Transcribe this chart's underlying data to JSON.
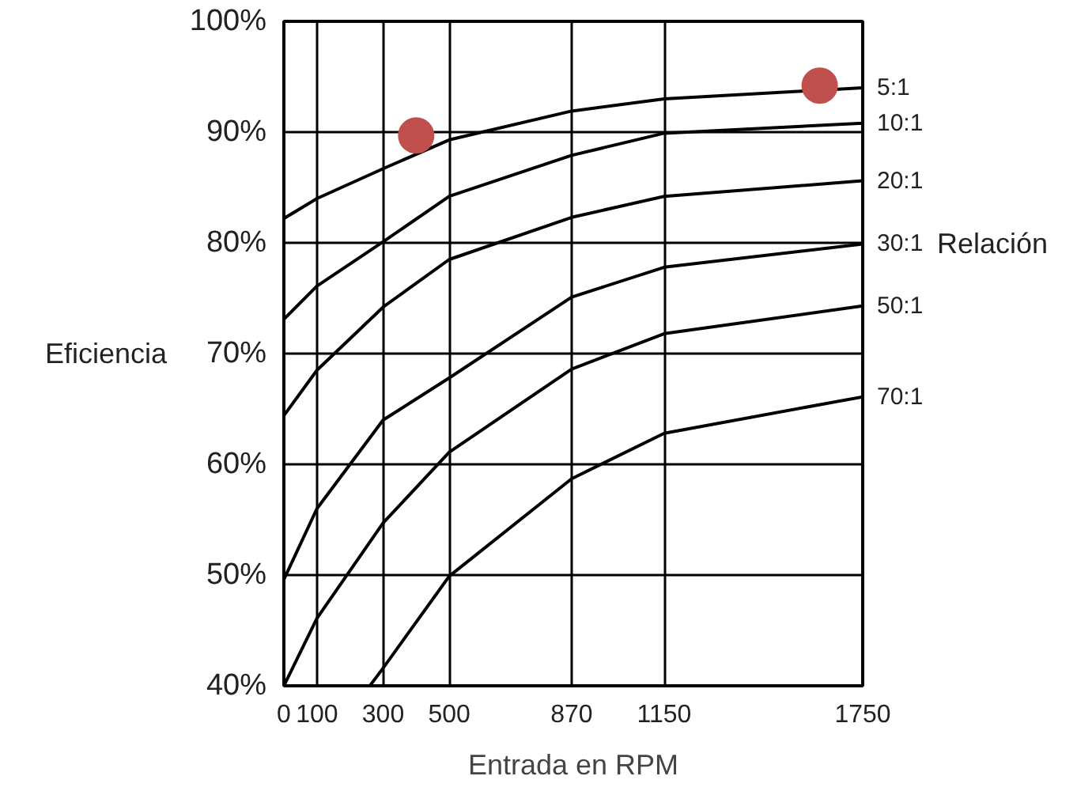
{
  "chart_data": {
    "type": "line",
    "xlabel": "Entrada en RPM",
    "ylabel": "Eficiencia",
    "x": [
      0,
      100,
      300,
      500,
      870,
      1150,
      1750
    ],
    "series": [
      {
        "name": "5:1",
        "color": "#000000",
        "values": [
          82.2,
          84.0,
          86.7,
          89.3,
          91.9,
          93.0,
          94.0
        ]
      },
      {
        "name": "10:1",
        "color": "#000000",
        "values": [
          73.1,
          76.1,
          80.1,
          84.2,
          87.9,
          89.9,
          90.8
        ]
      },
      {
        "name": "20:1",
        "color": "#000000",
        "values": [
          64.4,
          68.5,
          74.2,
          78.5,
          82.3,
          84.2,
          85.6
        ]
      },
      {
        "name": "30:1",
        "color": "#000000",
        "values": [
          49.6,
          56.0,
          64.0,
          67.8,
          75.1,
          77.8,
          79.9
        ]
      },
      {
        "name": "50:1",
        "color": "#000000",
        "values": [
          40.0,
          46.1,
          54.7,
          61.1,
          68.6,
          71.8,
          74.3
        ]
      },
      {
        "name": "70:1",
        "color": "#000000",
        "x": [
          260,
          300,
          500,
          870,
          1150,
          1750
        ],
        "values": [
          40.0,
          41.6,
          49.9,
          58.7,
          62.8,
          66.1
        ]
      },
      {
        "type": "scatter",
        "color": "#c0504d",
        "x": [
          400,
          1620
        ],
        "values": [
          89.7,
          94.2
        ]
      }
    ],
    "annotations": [
      "Relación"
    ],
    "xlim": [
      0,
      1750
    ],
    "xticks": [
      0,
      100,
      300,
      500,
      870,
      1150,
      1750
    ],
    "ylim": [
      40,
      100
    ],
    "yticks": [
      {
        "value": 40,
        "label": "40%"
      },
      {
        "value": 50,
        "label": "50%"
      },
      {
        "value": 60,
        "label": "60%"
      },
      {
        "value": 70,
        "label": "70%"
      },
      {
        "value": 80,
        "label": "80%"
      },
      {
        "value": 90,
        "label": "90%"
      },
      {
        "value": 100,
        "label": "100%"
      }
    ],
    "grid": true,
    "line_style": "solid"
  }
}
